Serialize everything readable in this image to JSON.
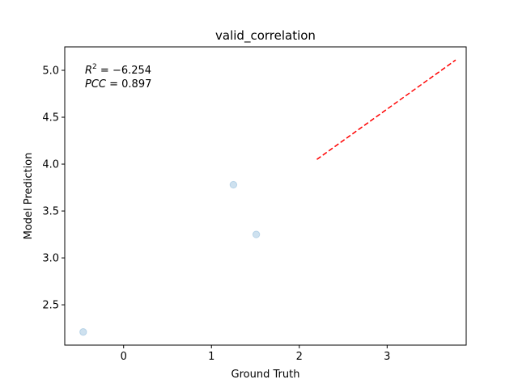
{
  "chart_data": {
    "type": "scatter",
    "title": "valid_correlation",
    "xlabel": "Ground Truth",
    "ylabel": "Model Prediction",
    "xlim": [
      -0.67,
      3.9
    ],
    "ylim": [
      2.07,
      5.25
    ],
    "xticks": [
      0,
      1,
      2,
      3
    ],
    "xtick_labels": [
      "0",
      "1",
      "2",
      "3"
    ],
    "yticks": [
      2.5,
      3.0,
      3.5,
      4.0,
      4.5,
      5.0
    ],
    "ytick_labels": [
      "2.5",
      "3.0",
      "3.5",
      "4.0",
      "4.5",
      "5.0"
    ],
    "grid": false,
    "points": [
      {
        "x": -0.46,
        "y": 2.21
      },
      {
        "x": 1.25,
        "y": 3.78
      },
      {
        "x": 1.51,
        "y": 3.25
      }
    ],
    "point_color": "#1f77b4",
    "fit_line": {
      "x": [
        2.2,
        3.78
      ],
      "y": [
        4.05,
        5.11
      ],
      "style": "dashed",
      "color": "#ff0000"
    },
    "annotations": {
      "r2_prefix": "R",
      "r2_sup": "2",
      "r2_value": " = −6.254",
      "pcc_name": "PCC",
      "pcc_value": " = 0.897"
    }
  }
}
